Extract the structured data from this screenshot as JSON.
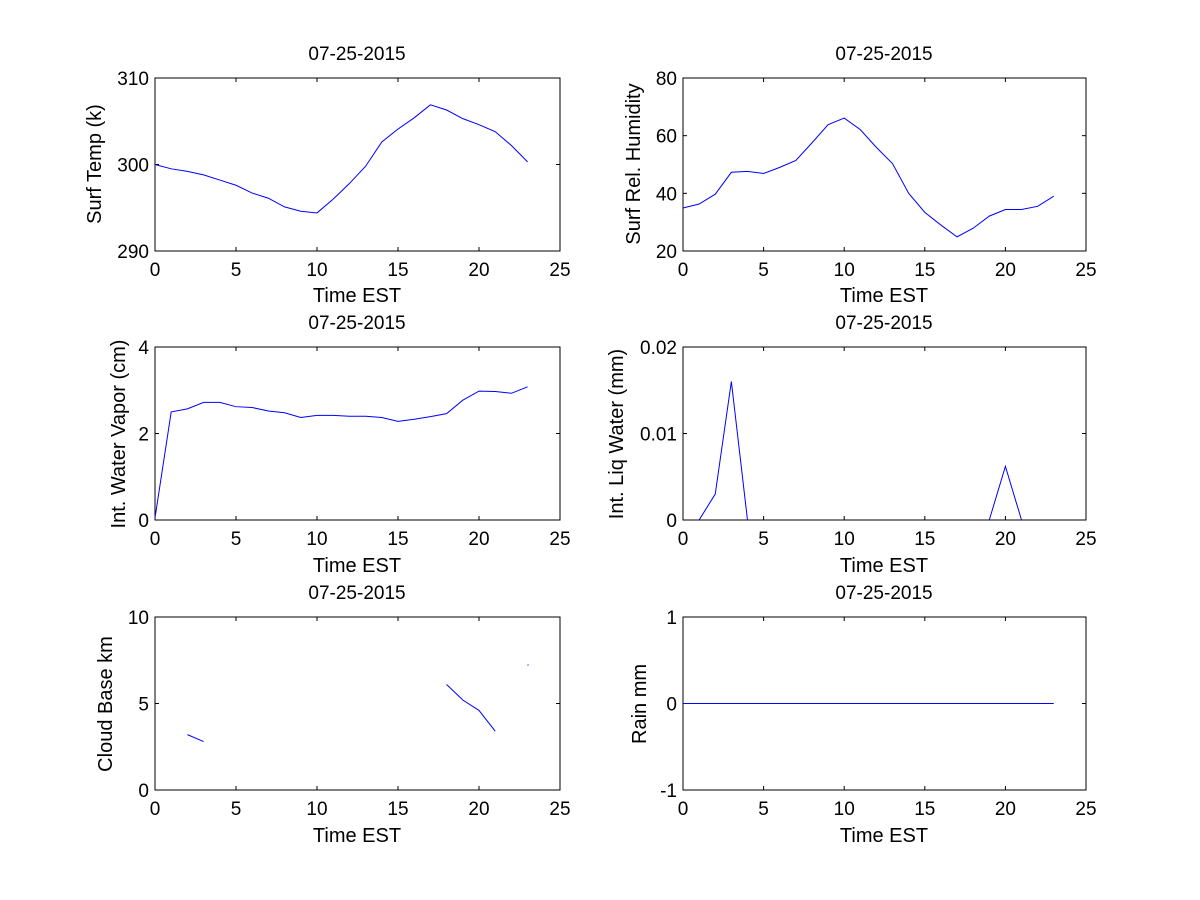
{
  "line_color": "#0000ff",
  "chart_data": [
    {
      "type": "line",
      "title": "07-25-2015",
      "xlabel": "Time EST",
      "ylabel": "Surf Temp (k)",
      "xlim": [
        0,
        25
      ],
      "ylim": [
        290,
        310
      ],
      "xticks": [
        0,
        5,
        10,
        15,
        20,
        25
      ],
      "yticks": [
        290,
        300,
        310
      ],
      "grid": false,
      "series": [
        {
          "x": [
            0,
            1,
            2,
            3,
            4,
            5,
            6,
            7,
            8,
            9,
            10,
            11,
            12,
            13,
            14,
            15,
            16,
            17,
            18,
            19,
            20,
            21,
            22,
            23
          ],
          "y": [
            300.0,
            299.5,
            299.2,
            298.8,
            298.2,
            297.6,
            296.7,
            296.1,
            295.1,
            294.6,
            294.4,
            296.0,
            297.8,
            299.8,
            302.6,
            304.1,
            305.4,
            306.9,
            306.3,
            305.3,
            304.6,
            303.8,
            302.2,
            300.3
          ]
        }
      ]
    },
    {
      "type": "line",
      "title": "07-25-2015",
      "xlabel": "Time EST",
      "ylabel": "Surf Rel. Humidity",
      "xlim": [
        0,
        25
      ],
      "ylim": [
        20,
        80
      ],
      "xticks": [
        0,
        5,
        10,
        15,
        20,
        25
      ],
      "yticks": [
        20,
        40,
        60,
        80
      ],
      "grid": false,
      "series": [
        {
          "x": [
            0,
            1,
            2,
            3,
            4,
            5,
            6,
            7,
            8,
            9,
            10,
            11,
            12,
            13,
            14,
            15,
            16,
            17,
            18,
            19,
            20,
            21,
            22,
            23
          ],
          "y": [
            34.9,
            36.3,
            39.7,
            47.3,
            47.6,
            46.9,
            49.0,
            51.4,
            57.5,
            63.8,
            66.1,
            62.1,
            55.9,
            50.3,
            40.0,
            33.4,
            29.0,
            24.9,
            27.9,
            32.1,
            34.4,
            34.4,
            35.5,
            39.0
          ]
        }
      ]
    },
    {
      "type": "line",
      "title": "07-25-2015",
      "xlabel": "Time EST",
      "ylabel": "Int. Water Vapor (cm)",
      "xlim": [
        0,
        25
      ],
      "ylim": [
        0,
        4
      ],
      "xticks": [
        0,
        5,
        10,
        15,
        20,
        25
      ],
      "yticks": [
        0,
        2,
        4
      ],
      "grid": false,
      "series": [
        {
          "x": [
            0,
            1,
            2,
            3,
            4,
            5,
            6,
            7,
            8,
            9,
            10,
            11,
            12,
            13,
            14,
            15,
            16,
            17,
            18,
            19,
            20,
            21,
            22,
            23
          ],
          "y": [
            0.05,
            2.5,
            2.57,
            2.72,
            2.72,
            2.62,
            2.6,
            2.52,
            2.48,
            2.37,
            2.42,
            2.42,
            2.4,
            2.4,
            2.37,
            2.28,
            2.33,
            2.39,
            2.46,
            2.77,
            2.98,
            2.97,
            2.93,
            3.08
          ]
        }
      ]
    },
    {
      "type": "line",
      "title": "07-25-2015",
      "xlabel": "Time EST",
      "ylabel": "Int. Liq Water (mm)",
      "xlim": [
        0,
        25
      ],
      "ylim": [
        0,
        0.02
      ],
      "xticks": [
        0,
        5,
        10,
        15,
        20,
        25
      ],
      "yticks": [
        0,
        0.01,
        0.02
      ],
      "grid": false,
      "series": [
        {
          "x": [
            1,
            2,
            3,
            4,
            19,
            20,
            21
          ],
          "y": [
            0,
            0.003,
            0.016,
            0,
            0,
            0.0062,
            0
          ],
          "segments": [
            [
              0,
              3
            ],
            [
              4,
              6
            ]
          ]
        }
      ]
    },
    {
      "type": "line",
      "title": "07-25-2015",
      "xlabel": "Time EST",
      "ylabel": "Cloud Base km",
      "xlim": [
        0,
        25
      ],
      "ylim": [
        0,
        10
      ],
      "xticks": [
        0,
        5,
        10,
        15,
        20,
        25
      ],
      "yticks": [
        0,
        5,
        10
      ],
      "grid": false,
      "series": [
        {
          "x": [
            2,
            3,
            18,
            19,
            20,
            21,
            23,
            23.05
          ],
          "y": [
            3.2,
            2.8,
            6.1,
            5.2,
            4.6,
            3.4,
            7.2,
            7.25
          ],
          "segments": [
            [
              0,
              1
            ],
            [
              2,
              5
            ],
            [
              6,
              7
            ]
          ]
        }
      ]
    },
    {
      "type": "line",
      "title": "07-25-2015",
      "xlabel": "Time EST",
      "ylabel": "Rain mm",
      "xlim": [
        0,
        25
      ],
      "ylim": [
        -1,
        1
      ],
      "xticks": [
        0,
        5,
        10,
        15,
        20,
        25
      ],
      "yticks": [
        -1,
        0,
        1
      ],
      "grid": false,
      "series": [
        {
          "x": [
            0,
            23
          ],
          "y": [
            0,
            0
          ]
        }
      ]
    }
  ]
}
